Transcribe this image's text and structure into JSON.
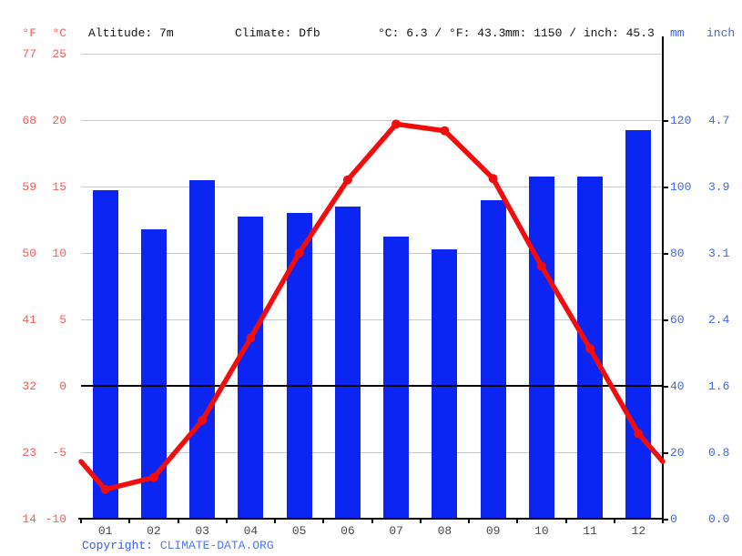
{
  "header": {
    "f_unit": "°F",
    "c_unit": "°C",
    "altitude": "Altitude: 7m",
    "climate": "Climate: Dfb",
    "temp_summary": "°C: 6.3 / °F: 43.3",
    "precip_summary": "mm: 1150 / inch: 45.3",
    "mm_unit": "mm",
    "inch_unit": "inch"
  },
  "footer": {
    "copyright_prefix": "Copyright: ",
    "copyright_link": "CLIMATE-DATA.ORG"
  },
  "colors": {
    "bar_blue": "#0b25f3",
    "line_red": "#f20d0d",
    "left_label_red": "#f85c5c",
    "right_label_blue": "#3e64f1",
    "month_label_gray": "#4a4a4a",
    "gridline_gray": "#c9c9c9",
    "zero_line_black": "#000000"
  },
  "chart_data": {
    "type": "bar",
    "subtype": "climograph: precipitation bars + temperature line",
    "categories": [
      "01",
      "02",
      "03",
      "04",
      "05",
      "06",
      "07",
      "08",
      "09",
      "10",
      "11",
      "12"
    ],
    "series": [
      {
        "name": "precipitation",
        "type": "bar",
        "unit": "mm",
        "axis": "right",
        "values": [
          99,
          87,
          102,
          91,
          92,
          94,
          85,
          81,
          96,
          103,
          103,
          117
        ]
      },
      {
        "name": "temperature",
        "type": "line",
        "unit": "°C",
        "axis": "left",
        "values": [
          -7.8,
          -6.9,
          -2.6,
          3.6,
          10.0,
          15.5,
          19.7,
          19.2,
          15.6,
          9.0,
          2.8,
          -3.6
        ]
      }
    ],
    "left_axis": {
      "f_ticks": [
        77,
        68,
        59,
        50,
        41,
        32,
        23,
        14
      ],
      "c_ticks": [
        25,
        20,
        15,
        10,
        5,
        0,
        -5,
        -10
      ],
      "c_range": [
        -10,
        25
      ],
      "zero_line_c": 0
    },
    "right_axis": {
      "mm_ticks": [
        120,
        100,
        80,
        60,
        40,
        20,
        0
      ],
      "inch_ticks": [
        "4.7",
        "3.9",
        "3.1",
        "2.4",
        "1.6",
        "0.8",
        "0.0"
      ],
      "mm_range": [
        0,
        140
      ]
    },
    "grid": true,
    "legend": "none",
    "title": ""
  }
}
